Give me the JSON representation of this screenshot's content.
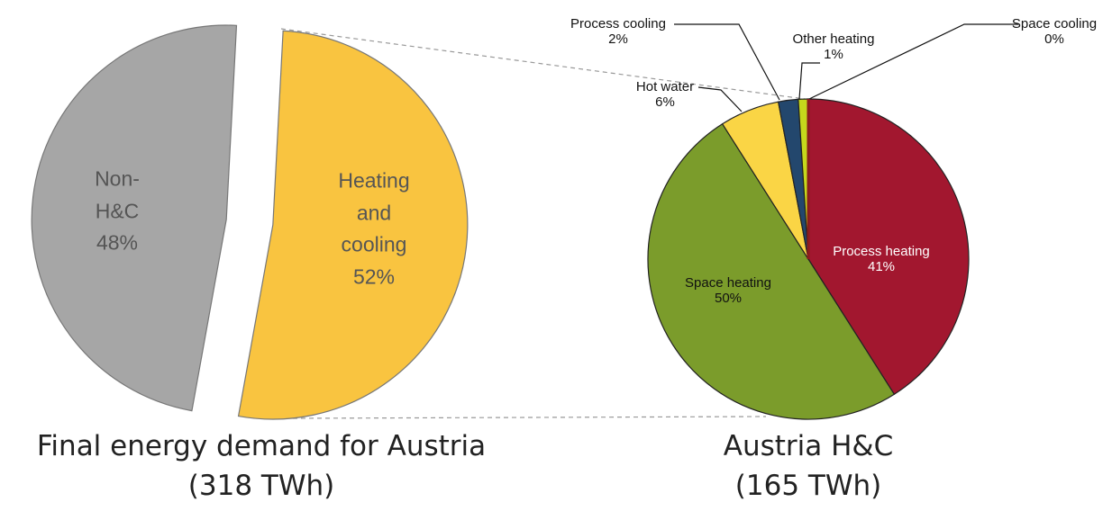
{
  "chart_data": [
    {
      "type": "pie",
      "title": "Final energy demand for Austria",
      "subtitle": "(318 TWh)",
      "categories": [
        "Non-H&C",
        "Heating and cooling"
      ],
      "values": [
        48,
        52
      ],
      "value_labels": [
        "48%",
        "52%"
      ],
      "colors": [
        "#a6a6a6",
        "#f9c440"
      ]
    },
    {
      "type": "pie",
      "title": "Austria H&C",
      "subtitle": "(165 TWh)",
      "categories": [
        "Process heating",
        "Space heating",
        "Hot water",
        "Process cooling",
        "Other heating",
        "Space cooling"
      ],
      "values": [
        41,
        50,
        6,
        2,
        1,
        0
      ],
      "value_labels": [
        "41%",
        "50%",
        "6%",
        "2%",
        "1%",
        "0%"
      ],
      "colors": [
        "#a2172f",
        "#7b9c2b",
        "#fad545",
        "#23476d",
        "#c5d81c",
        "#8c1c1c"
      ]
    }
  ]
}
